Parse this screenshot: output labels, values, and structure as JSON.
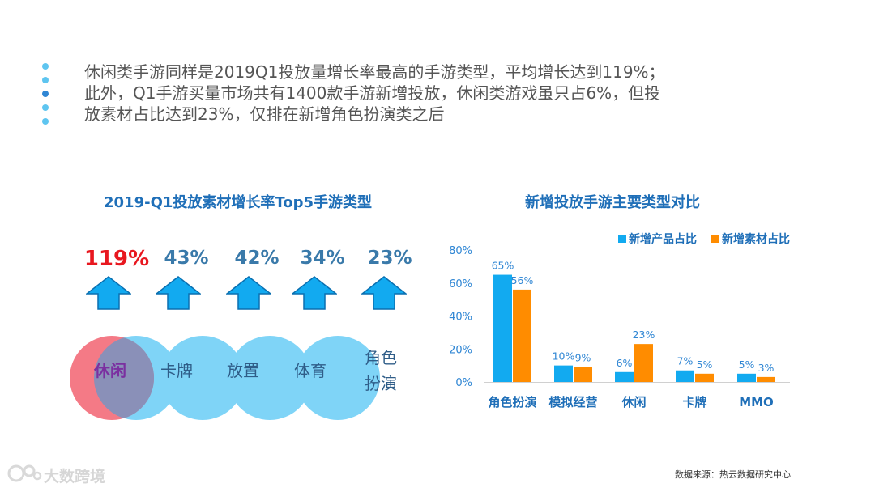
{
  "intro": {
    "text": "休闲类手游同样是2019Q1投放量增长率最高的手游类型，平均增长达到119%；此外，Q1手游买量市场共有1400款手游新增投放，休闲类游戏虽只占6%，但投放素材占比达到23%，仅排在新增角色扮演类之后"
  },
  "left_panel": {
    "title": "2019-Q1投放素材增长率Top5手游类型",
    "items": [
      {
        "name": "休闲",
        "growth": "119%"
      },
      {
        "name": "卡牌",
        "growth": "43%"
      },
      {
        "name": "放置",
        "growth": "42%"
      },
      {
        "name": "体育",
        "growth": "34%"
      },
      {
        "name": "角色扮演",
        "line1": "角色",
        "line2": "扮演",
        "growth": "23%"
      }
    ]
  },
  "chart_data": {
    "type": "bar",
    "title": "新增投放手游主要类型对比",
    "categories": [
      "角色扮演",
      "模拟经营",
      "休闲",
      "卡牌",
      "MMO"
    ],
    "series": [
      {
        "name": "新增产品占比",
        "values": [
          65,
          10,
          6,
          7,
          5
        ],
        "labels": [
          "65%",
          "10%",
          "6%",
          "7%",
          "5%"
        ],
        "color": "#12aaf0"
      },
      {
        "name": "新增素材占比",
        "values": [
          56,
          9,
          23,
          5,
          3
        ],
        "labels": [
          "56%",
          "9%",
          "23%",
          "5%",
          "3%"
        ],
        "color": "#ff8c00"
      }
    ],
    "ylim": [
      0,
      80
    ],
    "yticks": [
      "0%",
      "20%",
      "40%",
      "60%",
      "80%"
    ],
    "ytick_values": [
      0,
      20,
      40,
      60,
      80
    ],
    "legend_position": "top-right",
    "grid": false
  },
  "footer": {
    "source": "数据来源：热云数据研究中心",
    "watermark": "大数跨境"
  },
  "colors": {
    "accent": "#1f6fb8",
    "highlight_red": "#e8171f",
    "circle_blue": "#7fd4f7",
    "circle_red": "#f47a86",
    "arrow": "#12aaf0"
  }
}
